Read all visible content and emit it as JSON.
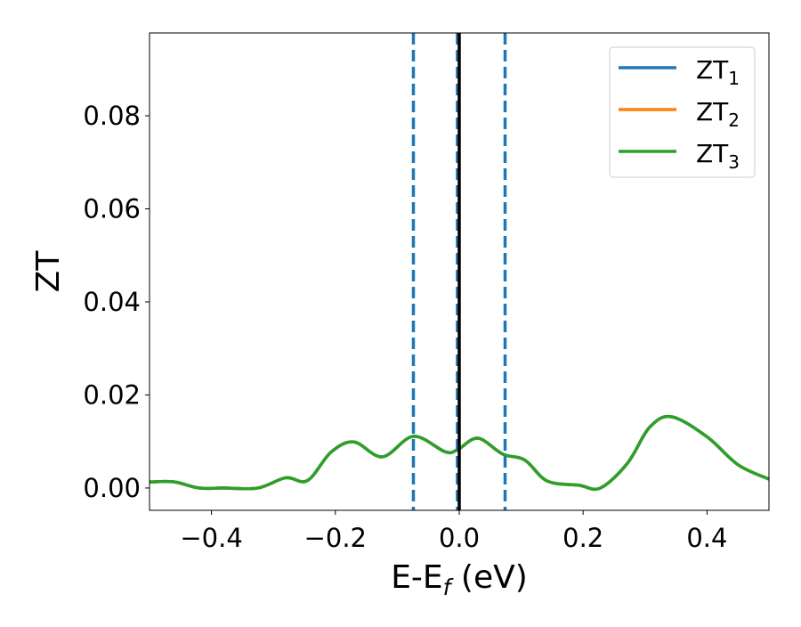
{
  "chart_data": {
    "type": "line",
    "title": "",
    "xlabel": "E-E",
    "xlabel_sub": "f",
    "xlabel_unit": " (eV)",
    "ylabel": "ZT",
    "xlim": [
      -0.5,
      0.5
    ],
    "ylim": [
      -0.0048,
      0.0978
    ],
    "xticks": [
      -0.4,
      -0.2,
      0.0,
      0.2,
      0.4
    ],
    "xtick_labels": [
      "−0.4",
      "−0.2",
      "0.0",
      "0.2",
      "0.4"
    ],
    "yticks": [
      0.0,
      0.02,
      0.04,
      0.06,
      0.08
    ],
    "ytick_labels": [
      "0.00",
      "0.02",
      "0.04",
      "0.06",
      "0.08"
    ],
    "grid": false,
    "legend_position": "top-right",
    "vlines": [
      {
        "x": -0.074,
        "style": "dashed",
        "color": "#1f77b4"
      },
      {
        "x": -0.003,
        "style": "dashed",
        "color": "#1f77b4"
      },
      {
        "x": 0.074,
        "style": "dashed",
        "color": "#1f77b4"
      },
      {
        "x": 0.0,
        "style": "solid",
        "color": "#000000"
      }
    ],
    "x": [
      -0.5,
      -0.46,
      -0.42,
      -0.38,
      -0.325,
      -0.28,
      -0.245,
      -0.207,
      -0.17,
      -0.124,
      -0.074,
      -0.023,
      -0.003,
      0.03,
      0.07,
      0.106,
      0.142,
      0.193,
      0.228,
      0.272,
      0.307,
      0.343,
      0.4,
      0.45,
      0.5
    ],
    "series": [
      {
        "name": "ZT",
        "sub": "1",
        "color": "#1f77b4",
        "values": [
          0.0013,
          0.0013,
          0.0,
          0.0,
          0.0,
          0.0022,
          0.0016,
          0.0077,
          0.0099,
          0.0067,
          0.0111,
          0.0078,
          0.0082,
          0.0107,
          0.0073,
          0.006,
          0.0015,
          0.0006,
          0.0,
          0.0054,
          0.013,
          0.0153,
          0.011,
          0.005,
          0.0019
        ]
      },
      {
        "name": "ZT",
        "sub": "2",
        "color": "#ff7f0e",
        "values": [
          0.0013,
          0.0013,
          0.0,
          0.0,
          0.0,
          0.0022,
          0.0016,
          0.0077,
          0.0099,
          0.0067,
          0.0111,
          0.0078,
          0.0082,
          0.0107,
          0.0073,
          0.006,
          0.0015,
          0.0006,
          0.0,
          0.0054,
          0.013,
          0.0153,
          0.011,
          0.005,
          0.0019
        ]
      },
      {
        "name": "ZT",
        "sub": "3",
        "color": "#2ca02c",
        "values": [
          0.0013,
          0.0013,
          0.0,
          0.0,
          0.0,
          0.0022,
          0.0016,
          0.0077,
          0.0099,
          0.0067,
          0.0111,
          0.0078,
          0.0082,
          0.0107,
          0.0073,
          0.006,
          0.0015,
          0.0006,
          0.0,
          0.0054,
          0.013,
          0.0153,
          0.011,
          0.005,
          0.0019
        ]
      }
    ]
  }
}
